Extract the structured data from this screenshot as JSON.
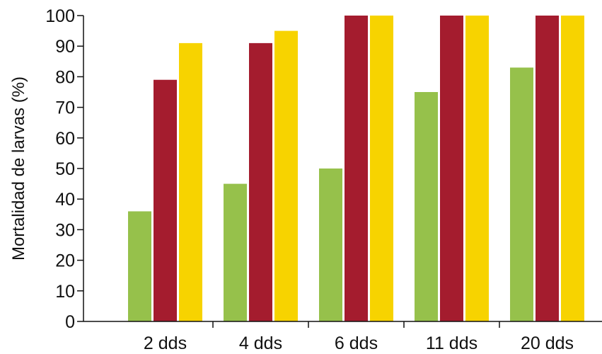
{
  "chart_data": {
    "type": "bar",
    "title": "",
    "xlabel": "",
    "ylabel": "Mortalidad de larvas (%)",
    "categories": [
      "2 dds",
      "4 dds",
      "6 dds",
      "11 dds",
      "20 dds"
    ],
    "series": [
      {
        "color": "#96c14b",
        "values": [
          36,
          45,
          50,
          75,
          83
        ]
      },
      {
        "color": "#a41c2e",
        "values": [
          79,
          91,
          100,
          100,
          100
        ]
      },
      {
        "color": "#f7d300",
        "values": [
          91,
          95,
          100,
          100,
          100
        ]
      }
    ],
    "ylim": [
      0,
      100
    ],
    "yticks": [
      0,
      10,
      20,
      30,
      40,
      50,
      60,
      70,
      80,
      90,
      100
    ],
    "grid": false,
    "legend": "none"
  }
}
